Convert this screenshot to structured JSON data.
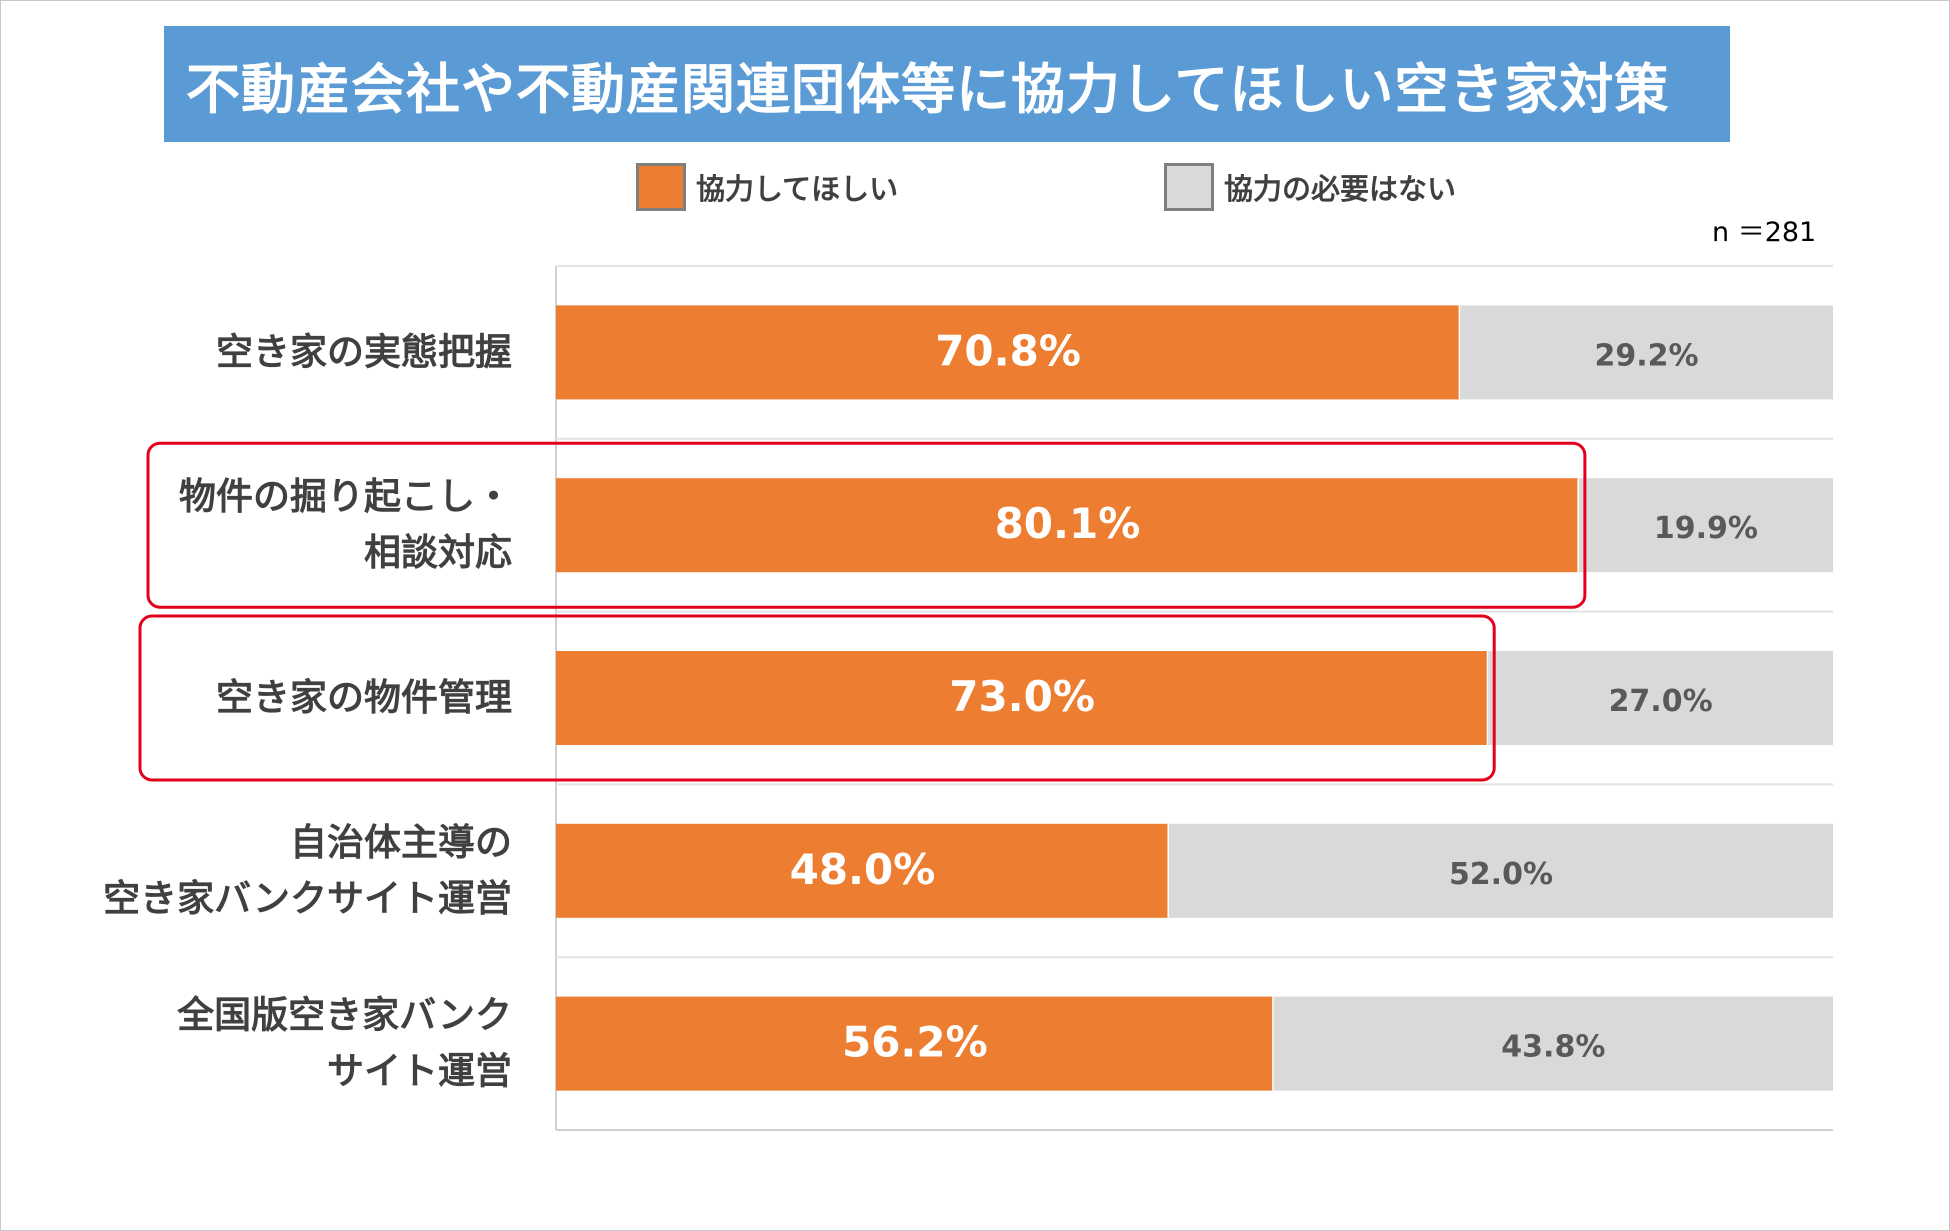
{
  "title": "不動産会社や不動産関連団体等に協力してほしい空き家対策",
  "n_label": "n ＝281",
  "legend": [
    {
      "label": "協力してほしい",
      "color": "#ed7d31"
    },
    {
      "label": "協力の必要はない",
      "color": "#d9d9d9"
    }
  ],
  "highlight_color": "#e3001b",
  "chart_data": {
    "type": "bar",
    "orientation": "horizontal-stacked-100",
    "categories": [
      [
        "空き家の実態把握"
      ],
      [
        "物件の掘り起こし・",
        "相談対応"
      ],
      [
        "空き家の物件管理"
      ],
      [
        "自治体主導の",
        "空き家バンクサイト運営"
      ],
      [
        "全国版空き家バンク",
        "サイト運営"
      ]
    ],
    "series": [
      {
        "name": "協力してほしい",
        "color": "#ed7d31",
        "values": [
          70.8,
          80.1,
          73.0,
          48.0,
          56.2
        ],
        "labels": [
          "70.8%",
          "80.1%",
          "73.0%",
          "48.0%",
          "56.2%"
        ]
      },
      {
        "name": "協力の必要はない",
        "color": "#d9d9d9",
        "values": [
          29.2,
          19.9,
          27.0,
          52.0,
          43.8
        ],
        "labels": [
          "29.2%",
          "19.9%",
          "27.0%",
          "52.0%",
          "43.8%"
        ]
      }
    ],
    "highlighted_categories": [
      1,
      2
    ],
    "xlim": [
      0,
      100
    ],
    "title": "不動産会社や不動産関連団体等に協力してほしい空き家対策"
  }
}
